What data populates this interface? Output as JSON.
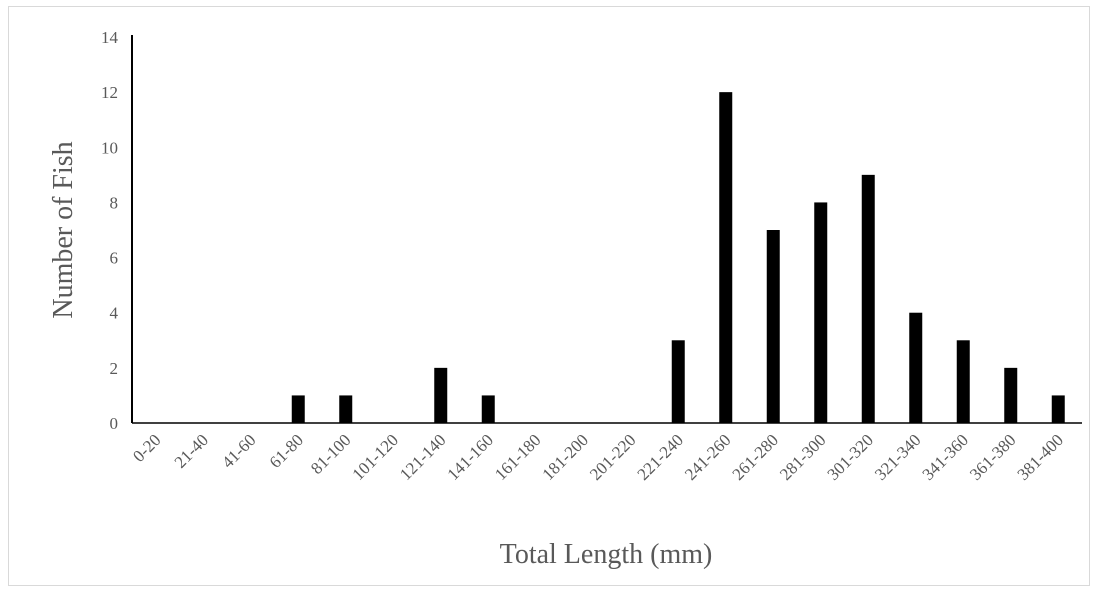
{
  "chart_data": {
    "type": "bar",
    "title": "",
    "xlabel": "Total Length (mm)",
    "ylabel": "Number of Fish",
    "categories": [
      "0-20",
      "21-40",
      "41-60",
      "61-80",
      "81-100",
      "101-120",
      "121-140",
      "141-160",
      "161-180",
      "181-200",
      "201-220",
      "221-240",
      "241-260",
      "261-280",
      "281-300",
      "301-320",
      "321-340",
      "341-360",
      "361-380",
      "381-400"
    ],
    "values": [
      0,
      0,
      0,
      1,
      1,
      0,
      2,
      1,
      0,
      0,
      0,
      3,
      12,
      7,
      8,
      9,
      4,
      3,
      2,
      1
    ],
    "ylim": [
      0,
      14
    ],
    "yticks": [
      "0",
      "2",
      "4",
      "6",
      "8",
      "10",
      "12",
      "14"
    ],
    "grid": false,
    "legend": "none",
    "bar_color": "#000000",
    "axis_color": "#000000",
    "text_color": "#595959"
  }
}
